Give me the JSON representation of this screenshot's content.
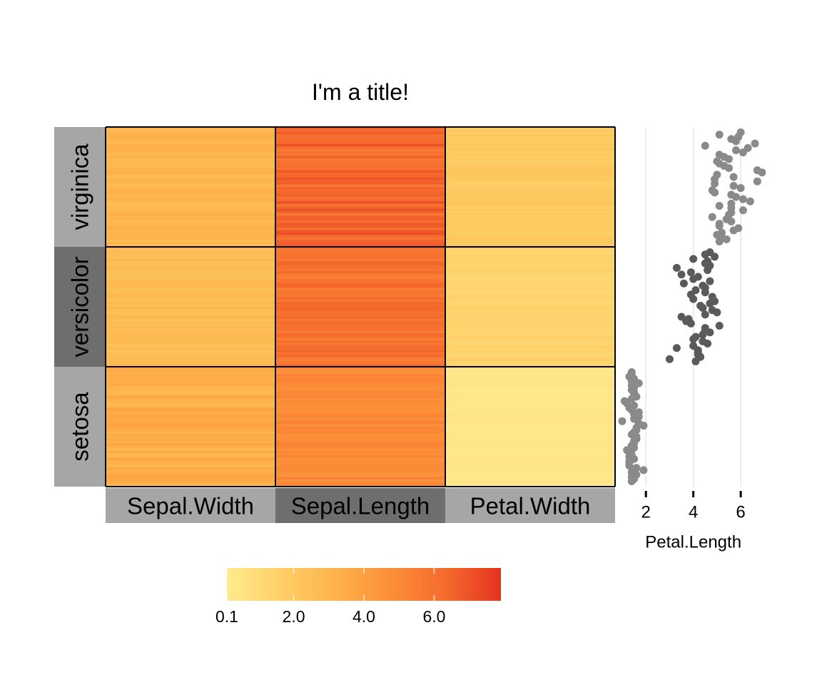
{
  "chart_data": {
    "type": "heatmap",
    "title": "I'm a title!",
    "columns": [
      "Sepal.Width",
      "Sepal.Length",
      "Petal.Width"
    ],
    "row_groups": [
      "virginica",
      "versicolor",
      "setosa"
    ],
    "group_colors": {
      "virginica": "#a6a6a6",
      "versicolor": "#6e6e6e",
      "setosa": "#a6a6a6"
    },
    "column_colors": {
      "Sepal.Width": "#a6a6a6",
      "Sepal.Length": "#6e6e6e",
      "Petal.Width": "#a6a6a6"
    },
    "cells": {
      "virginica": {
        "Sepal.Width": [
          2.2,
          3.8
        ],
        "Sepal.Length": [
          4.9,
          7.9
        ],
        "Petal.Width": [
          1.4,
          2.5
        ]
      },
      "versicolor": {
        "Sepal.Width": [
          2.0,
          3.4
        ],
        "Sepal.Length": [
          4.9,
          7.0
        ],
        "Petal.Width": [
          1.0,
          1.8
        ]
      },
      "setosa": {
        "Sepal.Width": [
          2.3,
          4.4
        ],
        "Sepal.Length": [
          4.3,
          5.8
        ],
        "Petal.Width": [
          0.1,
          0.6
        ]
      }
    },
    "colorscale": {
      "min": 0.1,
      "max": 7.9,
      "colors": [
        "#ffeb8f",
        "#fecf66",
        "#fdb24c",
        "#fb8f39",
        "#f56a2d",
        "#e3331f"
      ],
      "ticks": [
        0.1,
        2.0,
        4.0,
        6.0
      ],
      "tick_labels": [
        "0.1",
        "2.0",
        "4.0",
        "6.0"
      ]
    },
    "side_scatter": {
      "type": "scatter",
      "xlabel": "Petal.Length",
      "xlim": [
        1.0,
        6.9
      ],
      "xticks": [
        2,
        4,
        6
      ],
      "xtick_labels": [
        "2",
        "4",
        "6"
      ],
      "grid": true,
      "point_colors": {
        "virginica": "#8a8a8a",
        "versicolor": "#5a5a5a",
        "setosa": "#8a8a8a"
      },
      "groups": {
        "virginica": [
          6.0,
          5.1,
          5.9,
          5.6,
          5.8,
          6.6,
          4.5,
          6.3,
          5.8,
          6.1,
          5.1,
          5.3,
          5.5,
          5.0,
          5.1,
          5.3,
          5.5,
          6.7,
          6.9,
          5.0,
          5.7,
          4.9,
          6.7,
          4.9,
          5.7,
          6.0,
          4.8,
          4.9,
          5.6,
          5.8,
          6.1,
          6.4,
          5.6,
          5.1,
          5.6,
          6.1,
          5.6,
          5.5,
          4.8,
          5.4,
          5.6,
          5.1,
          5.1,
          5.9,
          5.7,
          5.2,
          5.0,
          5.2,
          5.4,
          5.1
        ],
        "versicolor": [
          4.7,
          4.5,
          4.9,
          4.0,
          4.6,
          4.5,
          4.7,
          3.3,
          4.6,
          3.9,
          3.5,
          4.2,
          4.0,
          4.7,
          3.6,
          4.4,
          4.5,
          4.1,
          4.5,
          3.9,
          4.8,
          4.0,
          4.9,
          4.7,
          4.3,
          4.4,
          4.8,
          5.0,
          4.5,
          3.5,
          3.8,
          3.7,
          3.9,
          5.1,
          4.5,
          4.5,
          4.7,
          4.4,
          4.1,
          4.0,
          4.4,
          4.6,
          4.0,
          3.3,
          4.2,
          4.2,
          4.2,
          4.3,
          3.0,
          4.1
        ],
        "setosa": [
          1.4,
          1.4,
          1.3,
          1.5,
          1.4,
          1.7,
          1.4,
          1.5,
          1.4,
          1.5,
          1.5,
          1.6,
          1.4,
          1.1,
          1.2,
          1.5,
          1.3,
          1.4,
          1.7,
          1.5,
          1.7,
          1.5,
          1.0,
          1.7,
          1.9,
          1.6,
          1.6,
          1.5,
          1.4,
          1.6,
          1.6,
          1.5,
          1.5,
          1.4,
          1.5,
          1.2,
          1.3,
          1.4,
          1.3,
          1.5,
          1.3,
          1.3,
          1.3,
          1.6,
          1.9,
          1.4,
          1.6,
          1.4,
          1.5,
          1.4
        ]
      }
    }
  }
}
